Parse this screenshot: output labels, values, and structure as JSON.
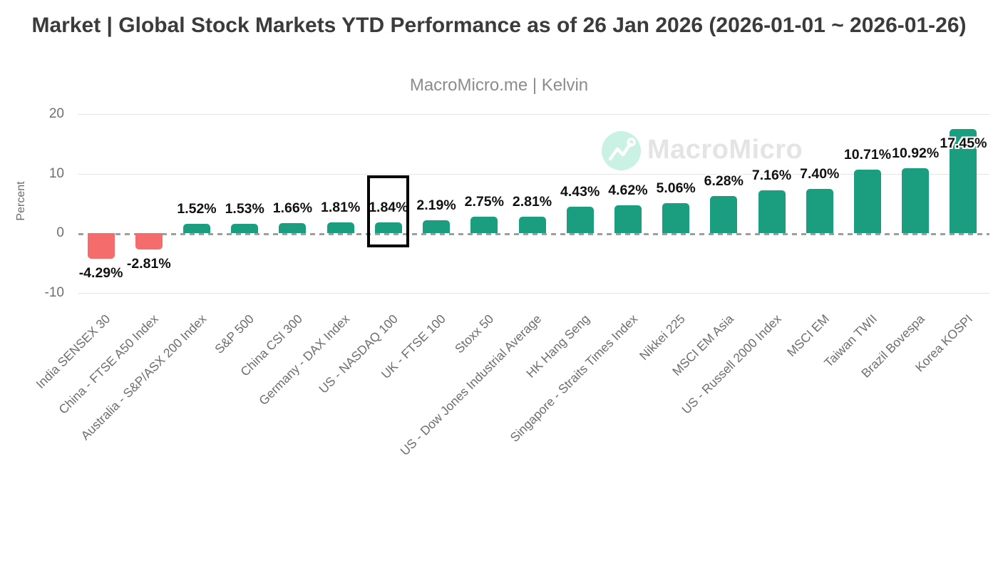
{
  "title": "Market | Global Stock Markets YTD Performance as of 26 Jan 2026 (2026-01-01 ~ 2026-01-26)",
  "subtitle": "MacroMicro.me | Kelvin",
  "watermark": {
    "brand": "MacroMicro",
    "icon": "macromicro-logo-icon",
    "circle_color": "#c9f2e5",
    "text_color": "#e4e4e4"
  },
  "chart_data": {
    "type": "bar",
    "title": "Global Stock Markets YTD Performance as of 26 Jan 2026",
    "xlabel": "",
    "ylabel": "Percent",
    "ylim": [
      -10,
      20
    ],
    "yticks": [
      20,
      10,
      0,
      -10
    ],
    "grid": true,
    "zero_line_style": "dashed",
    "legend": "none",
    "categories": [
      "India SENSEX 30",
      "China - FTSE A50 Index",
      "Australia - S&P/ASX 200 Index",
      "S&P 500",
      "China CSI 300",
      "Germany - DAX Index",
      "US - NASDAQ 100",
      "UK - FTSE 100",
      "Stoxx 50",
      "US - Dow Jones Industrial Average",
      "HK Hang Seng",
      "Singapore - Straits Times Index",
      "Nikkei 225",
      "MSCI EM Asia",
      "US - Russell 2000 Index",
      "MSCI EM",
      "Taiwan TWII",
      "Brazil Bovespa",
      "Korea KOSPI"
    ],
    "values": [
      -4.29,
      -2.81,
      1.52,
      1.53,
      1.66,
      1.81,
      1.84,
      2.19,
      2.75,
      2.81,
      4.43,
      4.62,
      5.06,
      6.28,
      7.16,
      7.4,
      10.71,
      10.92,
      17.45
    ],
    "value_labels": [
      "-4.29%",
      "-2.81%",
      "1.52%",
      "1.53%",
      "1.66%",
      "1.81%",
      "1.84%",
      "2.19%",
      "2.75%",
      "2.81%",
      "4.43%",
      "4.62%",
      "5.06%",
      "6.28%",
      "7.16%",
      "7.40%",
      "10.71%",
      "10.92%",
      "17.45%"
    ],
    "highlight_index": 6,
    "highlight_category": "US - NASDAQ 100",
    "colors": {
      "positive": "#1b9e80",
      "negative": "#f56c6c",
      "label": "#111111"
    }
  }
}
